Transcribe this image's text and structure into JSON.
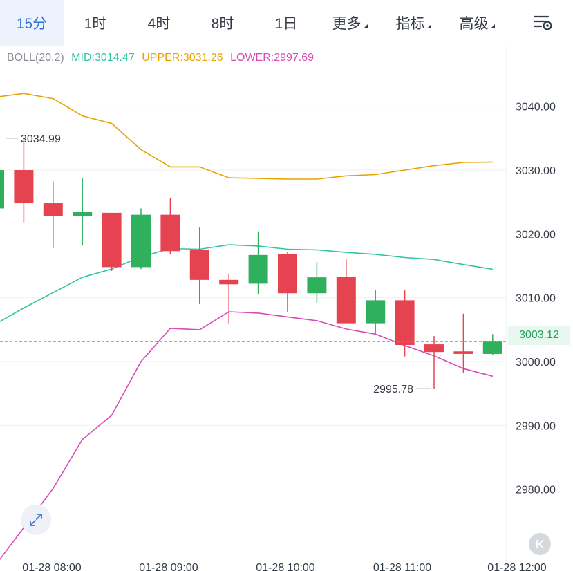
{
  "tabs": [
    {
      "label": "15分",
      "active": true,
      "dropdown": false
    },
    {
      "label": "1时",
      "active": false,
      "dropdown": false
    },
    {
      "label": "4时",
      "active": false,
      "dropdown": false
    },
    {
      "label": "8时",
      "active": false,
      "dropdown": false
    },
    {
      "label": "1日",
      "active": false,
      "dropdown": false
    },
    {
      "label": "更多",
      "active": false,
      "dropdown": true
    },
    {
      "label": "指标",
      "active": false,
      "dropdown": true
    },
    {
      "label": "高级",
      "active": false,
      "dropdown": true
    }
  ],
  "settings_icon": "chart-settings-icon",
  "indicator": {
    "name": "BOLL(20,2)",
    "mid": "MID:3014.47",
    "upper": "UPPER:3031.26",
    "lower": "LOWER:2997.69"
  },
  "last_price": "3003.12",
  "colors": {
    "up": "#2fb05d",
    "down": "#e5434f",
    "mid": "#2ec4a5",
    "upper": "#e8a200",
    "lower": "#d94ab4",
    "accent": "#2e6fd8"
  },
  "chart_data": {
    "type": "candlestick",
    "y_ticks": [
      "3040.00",
      "3030.00",
      "3020.00",
      "3010.00",
      "3000.00",
      "2990.00",
      "2980.00"
    ],
    "x_ticks": [
      "01-28 08:00",
      "01-28 09:00",
      "01-28 10:00",
      "01-28 11:00",
      "01-28 12:00"
    ],
    "high_label": "3034.99",
    "low_label": "2995.78",
    "candles": [
      {
        "o": 3024.0,
        "c": 3030.0,
        "h": 3031.0,
        "l": 3023.5
      },
      {
        "o": 3030.0,
        "c": 3024.8,
        "h": 3034.99,
        "l": 3021.8
      },
      {
        "o": 3024.8,
        "c": 3022.8,
        "h": 3028.2,
        "l": 3017.8
      },
      {
        "o": 3022.8,
        "c": 3023.4,
        "h": 3028.7,
        "l": 3018.2
      },
      {
        "o": 3023.3,
        "c": 3014.8,
        "h": 3023.3,
        "l": 3014.2
      },
      {
        "o": 3014.8,
        "c": 3023.0,
        "h": 3024.0,
        "l": 3014.5
      },
      {
        "o": 3023.0,
        "c": 3017.3,
        "h": 3025.6,
        "l": 3016.8
      },
      {
        "o": 3017.5,
        "c": 3012.8,
        "h": 3021.0,
        "l": 3009.0
      },
      {
        "o": 3012.8,
        "c": 3012.1,
        "h": 3013.8,
        "l": 3005.9
      },
      {
        "o": 3012.2,
        "c": 3016.7,
        "h": 3020.4,
        "l": 3010.5
      },
      {
        "o": 3016.8,
        "c": 3010.7,
        "h": 3017.2,
        "l": 3007.8
      },
      {
        "o": 3010.7,
        "c": 3013.2,
        "h": 3015.6,
        "l": 3009.2
      },
      {
        "o": 3013.3,
        "c": 3006.0,
        "h": 3016.0,
        "l": 3006.0
      },
      {
        "o": 3006.0,
        "c": 3009.6,
        "h": 3011.2,
        "l": 3004.4
      },
      {
        "o": 3009.6,
        "c": 3002.6,
        "h": 3011.2,
        "l": 3000.8
      },
      {
        "o": 3002.7,
        "c": 3001.5,
        "h": 3004.0,
        "l": 2995.78
      },
      {
        "o": 3001.6,
        "c": 3001.2,
        "h": 3007.5,
        "l": 2998.2
      },
      {
        "o": 3001.2,
        "c": 3003.12,
        "h": 3004.3,
        "l": 3001.0
      }
    ],
    "boll_upper": [
      3041.4,
      3042.0,
      3041.2,
      3038.5,
      3037.3,
      3033.2,
      3030.5,
      3030.5,
      3028.8,
      3028.7,
      3028.6,
      3028.6,
      3029.1,
      3029.3,
      3030.0,
      3030.7,
      3031.2,
      3031.26
    ],
    "boll_mid": [
      3005.8,
      3008.4,
      3010.8,
      3013.2,
      3014.5,
      3016.4,
      3017.7,
      3017.6,
      3018.3,
      3018.1,
      3017.6,
      3017.5,
      3017.1,
      3016.8,
      3016.3,
      3016.0,
      3015.2,
      3014.47
    ],
    "boll_lower": [
      2967.9,
      2974.0,
      2980.1,
      2987.8,
      2991.6,
      3000.0,
      3005.2,
      3005.0,
      3007.8,
      3007.6,
      3007.0,
      3006.4,
      3005.1,
      3004.3,
      3002.5,
      3000.9,
      2998.9,
      2997.69
    ],
    "ylim": [
      2970.0,
      3049.5
    ]
  }
}
